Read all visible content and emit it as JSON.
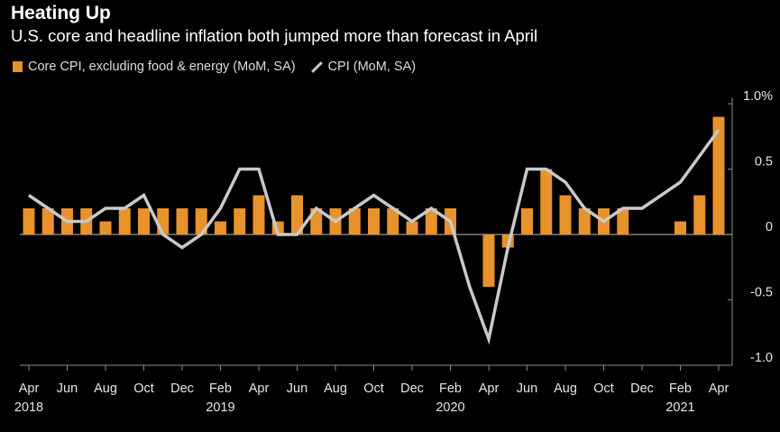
{
  "chart_data": {
    "type": "bar",
    "title": "Heating Up",
    "subtitle": "U.S. core and headline inflation both jumped more than forecast in April",
    "series": [
      {
        "name": "Core CPI, excluding food & energy (MoM, SA)",
        "type": "bar",
        "color": "#e8922b",
        "values": [
          0.2,
          0.2,
          0.2,
          0.2,
          0.1,
          0.2,
          0.2,
          0.2,
          0.2,
          0.2,
          0.1,
          0.2,
          0.3,
          0.1,
          0.3,
          0.2,
          0.2,
          0.2,
          0.2,
          0.2,
          0.1,
          0.2,
          0.2,
          0.0,
          -0.4,
          -0.1,
          0.2,
          0.5,
          0.3,
          0.2,
          0.2,
          0.2,
          0.0,
          0.0,
          0.1,
          0.3,
          0.9
        ]
      },
      {
        "name": "CPI (MoM, SA)",
        "type": "line",
        "color": "#c9c9c9",
        "values": [
          0.3,
          0.2,
          0.1,
          0.1,
          0.2,
          0.2,
          0.3,
          0.0,
          -0.1,
          0.0,
          0.2,
          0.5,
          0.5,
          0.0,
          0.0,
          0.2,
          0.1,
          0.2,
          0.3,
          0.2,
          0.1,
          0.2,
          0.1,
          -0.4,
          -0.8,
          -0.1,
          0.5,
          0.5,
          0.4,
          0.2,
          0.1,
          0.2,
          0.2,
          0.3,
          0.4,
          0.6,
          0.8
        ]
      }
    ],
    "x_months": [
      "Apr 2018",
      "May 2018",
      "Jun 2018",
      "Jul 2018",
      "Aug 2018",
      "Sep 2018",
      "Oct 2018",
      "Nov 2018",
      "Dec 2018",
      "Jan 2019",
      "Feb 2019",
      "Mar 2019",
      "Apr 2019",
      "May 2019",
      "Jun 2019",
      "Jul 2019",
      "Aug 2019",
      "Sep 2019",
      "Oct 2019",
      "Nov 2019",
      "Dec 2019",
      "Jan 2020",
      "Feb 2020",
      "Mar 2020",
      "Apr 2020",
      "May 2020",
      "Jun 2020",
      "Jul 2020",
      "Aug 2020",
      "Sep 2020",
      "Oct 2020",
      "Nov 2020",
      "Dec 2020",
      "Jan 2021",
      "Feb 2021",
      "Mar 2021",
      "Apr 2021"
    ],
    "x_tick_labels": [
      {
        "index": 0,
        "label": "Apr"
      },
      {
        "index": 2,
        "label": "Jun"
      },
      {
        "index": 4,
        "label": "Aug"
      },
      {
        "index": 6,
        "label": "Oct"
      },
      {
        "index": 8,
        "label": "Dec"
      },
      {
        "index": 10,
        "label": "Feb"
      },
      {
        "index": 12,
        "label": "Apr"
      },
      {
        "index": 14,
        "label": "Jun"
      },
      {
        "index": 16,
        "label": "Aug"
      },
      {
        "index": 18,
        "label": "Oct"
      },
      {
        "index": 20,
        "label": "Dec"
      },
      {
        "index": 22,
        "label": "Feb"
      },
      {
        "index": 24,
        "label": "Apr"
      },
      {
        "index": 26,
        "label": "Jun"
      },
      {
        "index": 28,
        "label": "Aug"
      },
      {
        "index": 30,
        "label": "Oct"
      },
      {
        "index": 32,
        "label": "Dec"
      },
      {
        "index": 34,
        "label": "Feb"
      },
      {
        "index": 36,
        "label": "Apr"
      }
    ],
    "year_labels": [
      {
        "index": 0,
        "label": "2018"
      },
      {
        "index": 10,
        "label": "2019"
      },
      {
        "index": 22,
        "label": "2020"
      },
      {
        "index": 34,
        "label": "2021"
      }
    ],
    "y_ticks": [
      {
        "value": 1.0,
        "label": "1.0%"
      },
      {
        "value": 0.5,
        "label": "0.5"
      },
      {
        "value": 0,
        "label": "0"
      },
      {
        "value": -0.5,
        "label": "-0.5"
      },
      {
        "value": -1.0,
        "label": "-1.0"
      }
    ],
    "ylim": [
      -1.0,
      1.0
    ],
    "legend_position": "top-left",
    "grid": false
  }
}
